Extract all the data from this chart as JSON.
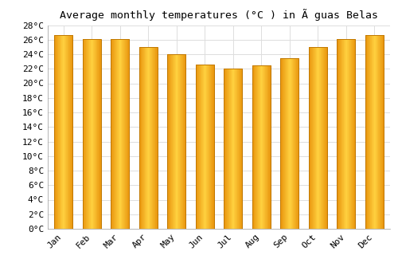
{
  "title": "Average monthly temperatures (°C ) in Ã guas Belas",
  "months": [
    "Jan",
    "Feb",
    "Mar",
    "Apr",
    "May",
    "Jun",
    "Jul",
    "Aug",
    "Sep",
    "Oct",
    "Nov",
    "Dec"
  ],
  "values": [
    26.6,
    26.1,
    26.1,
    25.0,
    24.0,
    22.6,
    22.0,
    22.5,
    23.5,
    25.0,
    26.1,
    26.6
  ],
  "bar_color_center": "#FFD060",
  "bar_color_edge": "#E89000",
  "background_color": "#ffffff",
  "grid_color": "#dddddd",
  "ylim": [
    0,
    28
  ],
  "ytick_step": 2,
  "title_fontsize": 9.5,
  "tick_fontsize": 8,
  "font_family": "monospace"
}
